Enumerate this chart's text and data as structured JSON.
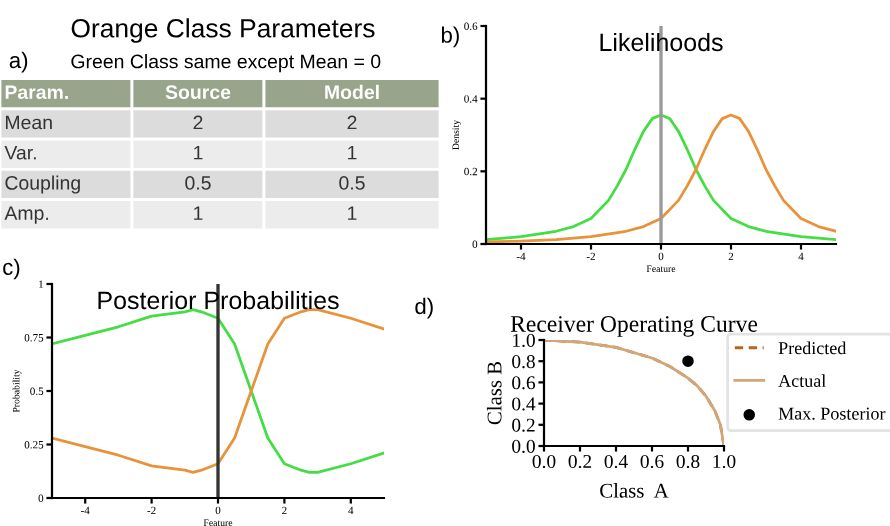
{
  "chart_data": [
    {
      "type": "other",
      "title": "Orange Class Parameters",
      "subtitle": "Green Class same except Mean = 0",
      "annotations": [
        "a)"
      ],
      "categories": [
        "Param.",
        "Source",
        "Model"
      ],
      "y_categories": [
        "Mean",
        "Var.",
        "Coupling",
        "Amp."
      ],
      "cell_labels": [
        [
          "2",
          "2"
        ],
        [
          "1",
          "1"
        ],
        [
          "0.5",
          "0.5"
        ],
        [
          "1",
          "1"
        ]
      ]
    },
    {
      "type": "line",
      "title": "Likelihoods",
      "xlabel": "Feature",
      "ylabel": "Density",
      "annotations": [
        "b)"
      ],
      "xlim": [
        -5,
        5
      ],
      "ylim": [
        0,
        0.6
      ],
      "xticks": [
        -4,
        -2,
        0,
        2,
        4
      ],
      "yticks": [
        0,
        0.2,
        0.4,
        0.6
      ],
      "grid": false,
      "legend": false,
      "ref_lines": [
        {
          "axis": "x",
          "value": 0,
          "color": "#999999"
        }
      ],
      "series": [
        {
          "color": "#44dd44",
          "x": [
            -5,
            -4,
            -3,
            -2.5,
            -2,
            -1.5,
            -1.25,
            -1,
            -0.75,
            -0.5,
            -0.25,
            0,
            0.25,
            0.5,
            0.75,
            1,
            1.25,
            1.5,
            2,
            2.5,
            3,
            4,
            5
          ],
          "values": [
            0.012,
            0.02,
            0.035,
            0.048,
            0.07,
            0.12,
            0.16,
            0.205,
            0.26,
            0.31,
            0.345,
            0.355,
            0.345,
            0.31,
            0.26,
            0.205,
            0.16,
            0.12,
            0.07,
            0.048,
            0.035,
            0.02,
            0.012
          ]
        },
        {
          "color": "#e8923a",
          "x": [
            -5,
            -4,
            -3,
            -2,
            -1,
            -0.5,
            0,
            0.5,
            0.75,
            1,
            1.25,
            1.5,
            1.75,
            2,
            2.25,
            2.5,
            2.75,
            3,
            3.25,
            3.5,
            4,
            4.5,
            5
          ],
          "values": [
            0.006,
            0.008,
            0.012,
            0.02,
            0.035,
            0.048,
            0.07,
            0.12,
            0.16,
            0.205,
            0.26,
            0.31,
            0.345,
            0.355,
            0.345,
            0.31,
            0.26,
            0.205,
            0.16,
            0.12,
            0.07,
            0.048,
            0.035
          ]
        }
      ]
    },
    {
      "type": "line",
      "title": "Posterior Probabilities",
      "xlabel": "Feature",
      "ylabel": "Probability",
      "annotations": [
        "c)"
      ],
      "xlim": [
        -5,
        5
      ],
      "ylim": [
        0,
        1
      ],
      "xticks": [
        -4,
        -2,
        0,
        2,
        4
      ],
      "yticks": [
        0,
        0.25,
        0.5,
        0.75,
        1
      ],
      "grid": false,
      "legend": false,
      "ref_lines": [
        {
          "axis": "x",
          "value": 0,
          "color": "#333333"
        }
      ],
      "series": [
        {
          "color": "#44dd44",
          "x": [
            -5,
            -4,
            -3,
            -2,
            -1,
            -0.75,
            -0.5,
            0,
            0.5,
            1,
            1.5,
            2,
            2.5,
            2.75,
            3,
            4,
            5
          ],
          "values": [
            0.72,
            0.76,
            0.8,
            0.85,
            0.87,
            0.88,
            0.87,
            0.84,
            0.72,
            0.5,
            0.28,
            0.16,
            0.13,
            0.12,
            0.12,
            0.16,
            0.21
          ]
        },
        {
          "color": "#e8923a",
          "x": [
            -5,
            -4,
            -3,
            -2,
            -1,
            -0.75,
            -0.5,
            0,
            0.5,
            1,
            1.5,
            2,
            2.5,
            2.75,
            3,
            4,
            5
          ],
          "values": [
            0.28,
            0.24,
            0.2,
            0.15,
            0.13,
            0.12,
            0.13,
            0.16,
            0.28,
            0.5,
            0.72,
            0.84,
            0.87,
            0.88,
            0.88,
            0.84,
            0.79
          ]
        }
      ]
    },
    {
      "type": "line",
      "title": "Receiver Operating Curve",
      "xlabel": "Class  A",
      "ylabel": "Class B",
      "annotations": [
        "d)"
      ],
      "xlim": [
        0,
        1
      ],
      "ylim": [
        0,
        1
      ],
      "xticks": [
        {
          "value": 0,
          "label": "0.0"
        },
        0.2,
        0.4,
        0.6,
        0.8,
        {
          "value": 1,
          "label": "1.0"
        }
      ],
      "yticks": [
        {
          "value": 0,
          "label": "0.0"
        },
        0.2,
        0.4,
        0.6,
        0.8,
        {
          "value": 1,
          "label": "1.0"
        }
      ],
      "grid": false,
      "legend": "right",
      "series": [
        {
          "name": "Predicted",
          "color": "#b5651d",
          "line_style": "dashed",
          "x": [
            0,
            0.2,
            0.4,
            0.6,
            0.7,
            0.8,
            0.85,
            0.9,
            0.95,
            0.98,
            1.0
          ],
          "values": [
            1.0,
            0.98,
            0.93,
            0.83,
            0.75,
            0.64,
            0.57,
            0.47,
            0.33,
            0.2,
            0.0
          ]
        },
        {
          "name": "Actual",
          "color": "#d2a679",
          "line_style": "solid",
          "x": [
            0,
            0.2,
            0.4,
            0.6,
            0.7,
            0.8,
            0.85,
            0.9,
            0.95,
            0.98,
            1.0
          ],
          "values": [
            1.0,
            0.98,
            0.93,
            0.83,
            0.75,
            0.64,
            0.57,
            0.47,
            0.33,
            0.2,
            0.0
          ]
        },
        {
          "name": "Max. Posterior",
          "type": "scatter",
          "marker": "circle",
          "color": "#000000",
          "x": [
            0.8
          ],
          "values": [
            0.8
          ]
        }
      ]
    }
  ]
}
